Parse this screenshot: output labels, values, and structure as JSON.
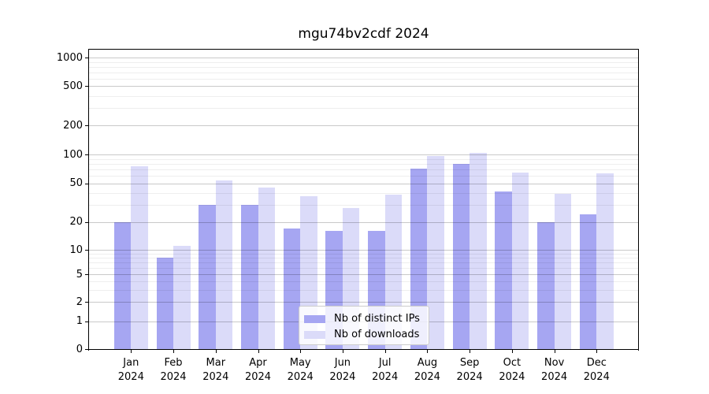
{
  "chart_data": {
    "type": "bar",
    "title": "mgu74bv2cdf 2024",
    "categories": [
      "Jan",
      "Feb",
      "Mar",
      "Apr",
      "May",
      "Jun",
      "Jul",
      "Aug",
      "Sep",
      "Oct",
      "Nov",
      "Dec"
    ],
    "x_year_line": "2024",
    "series": [
      {
        "name": "Nb of distinct IPs",
        "color": "#a6a6f2",
        "values": [
          20,
          8,
          30,
          30,
          17,
          16,
          16,
          71,
          80,
          41,
          20,
          24
        ]
      },
      {
        "name": "Nb of downloads",
        "color": "#dbdbf9",
        "values": [
          75,
          11,
          54,
          45,
          37,
          28,
          38,
          97,
          104,
          65,
          39,
          64
        ]
      }
    ],
    "y_ticks": [
      0,
      1,
      2,
      5,
      10,
      20,
      50,
      100,
      200,
      500,
      1000
    ],
    "ylim": [
      0,
      1300
    ],
    "y_scale": "log-like above 1, compressed linear near 0",
    "grid": true,
    "legend_position": "lower center"
  }
}
